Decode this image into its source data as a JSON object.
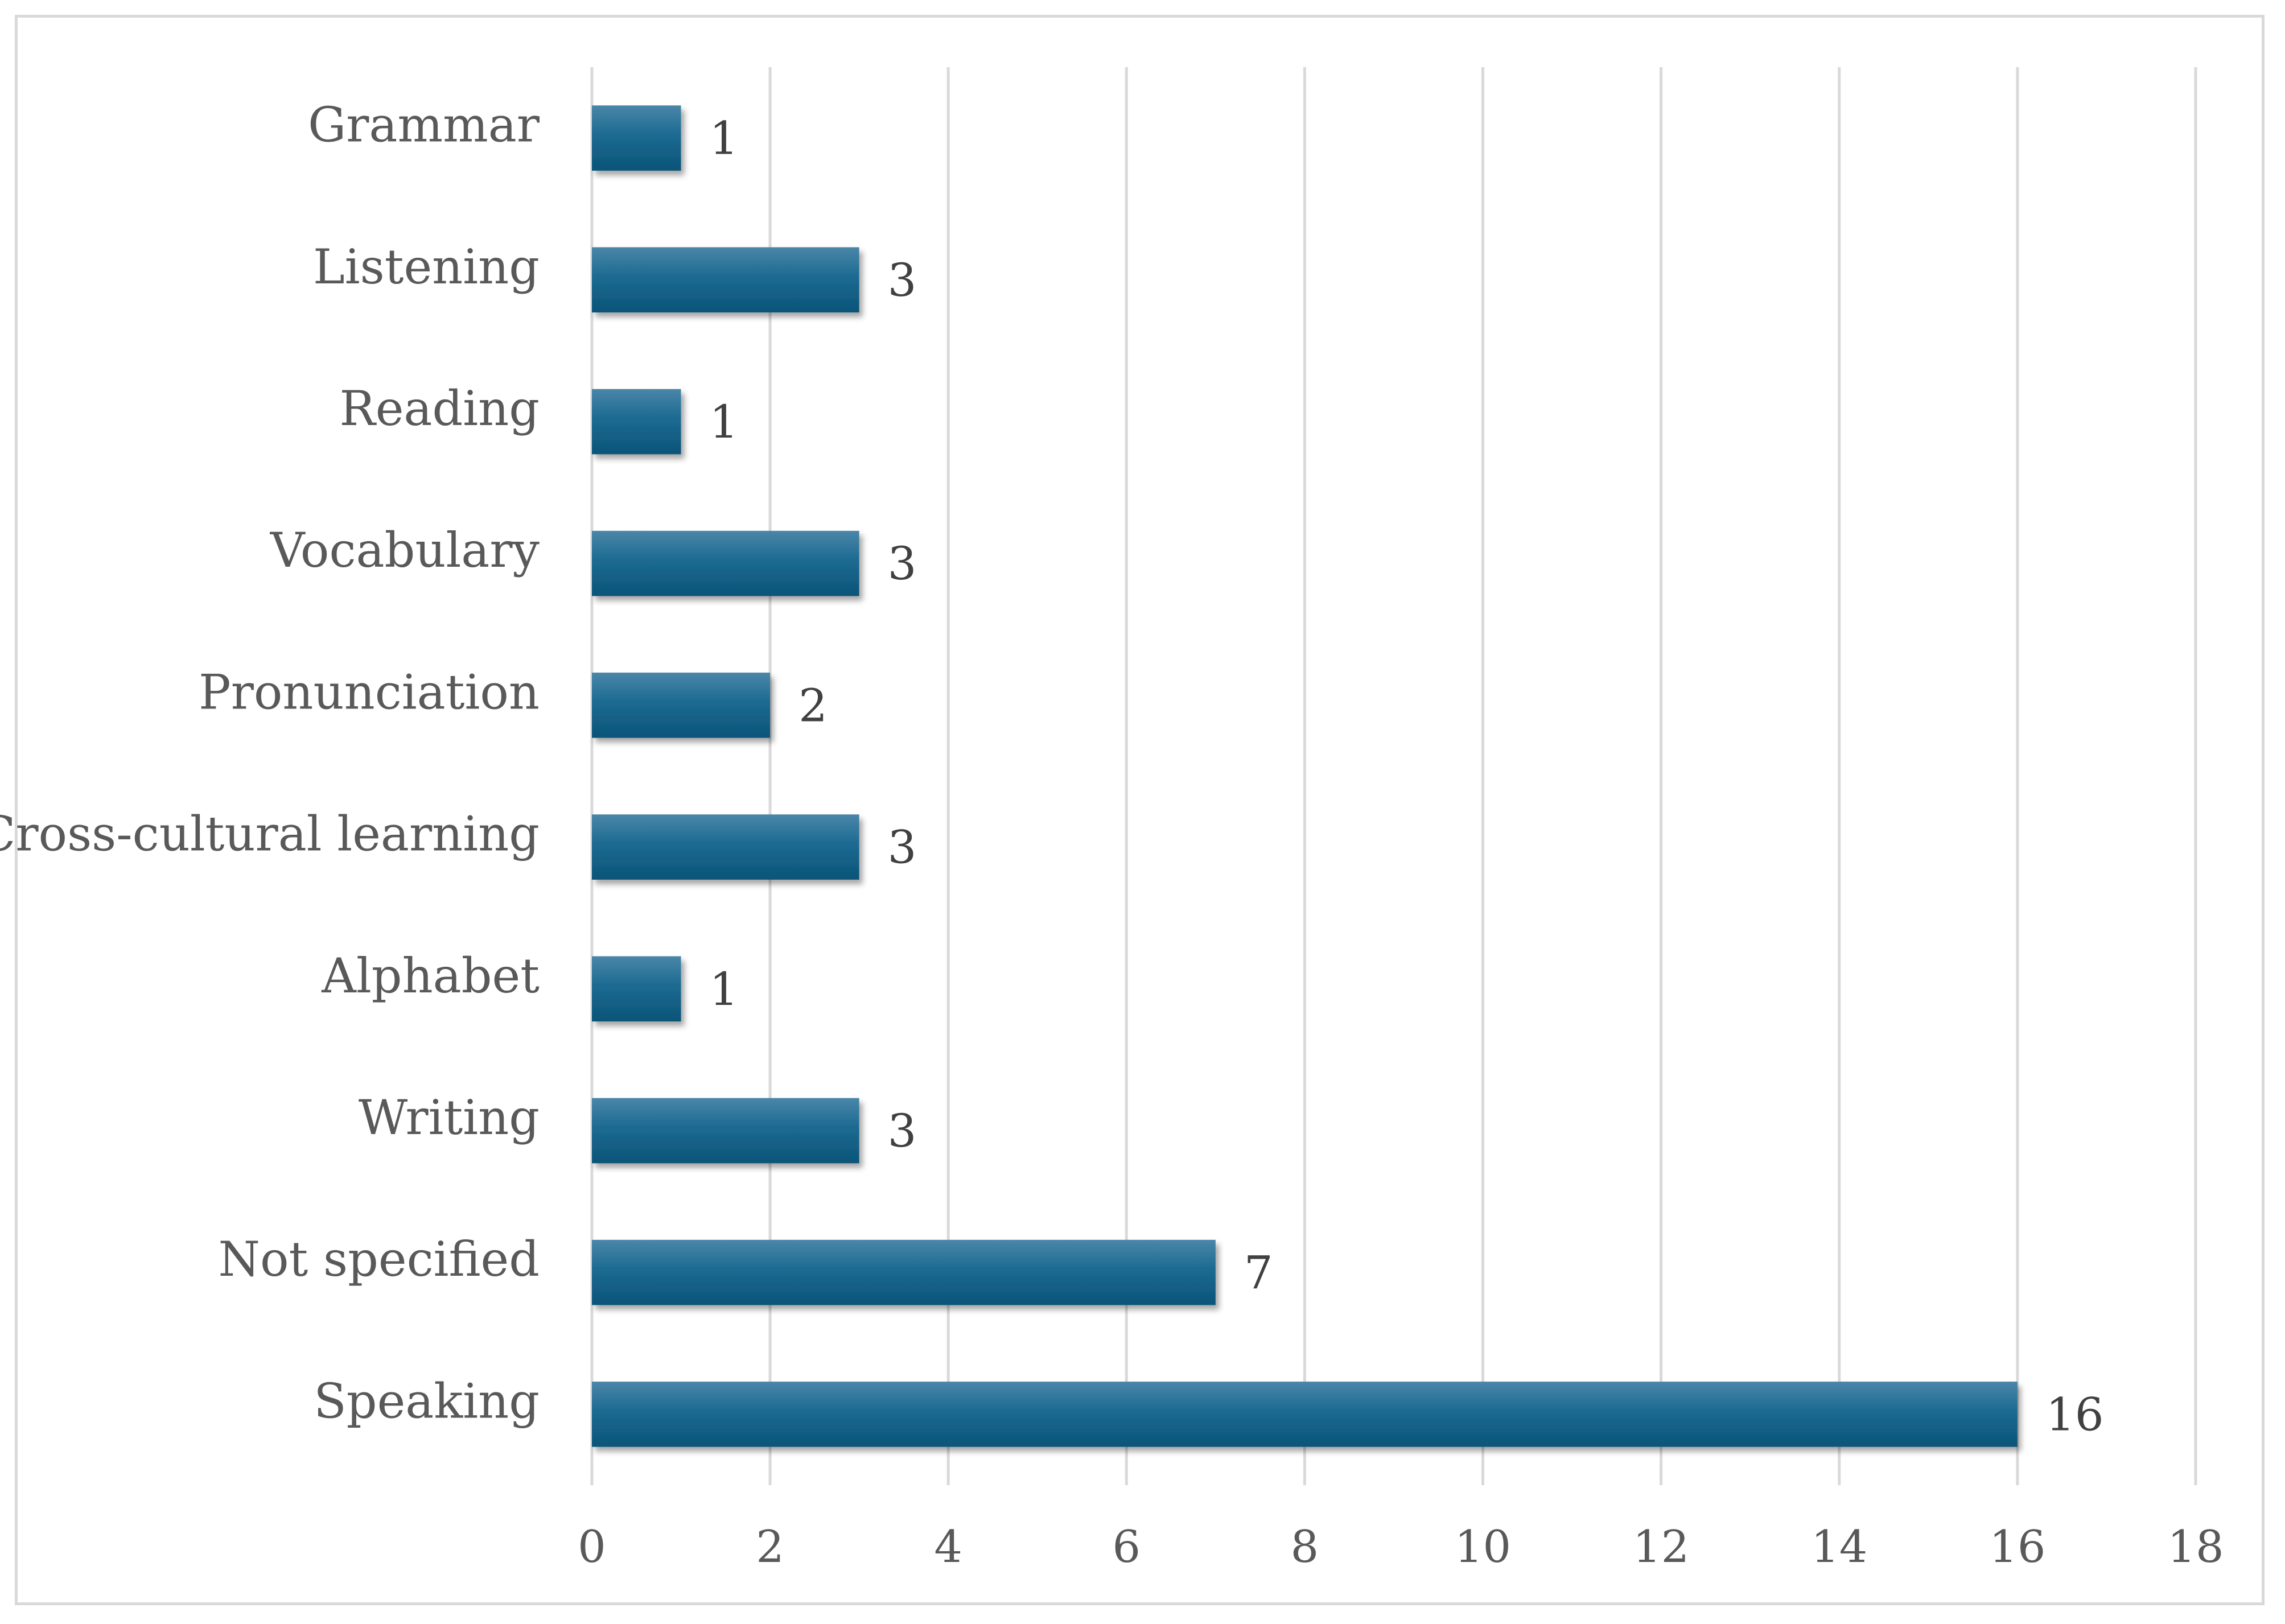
{
  "chart_data": {
    "type": "bar",
    "orientation": "horizontal",
    "categories": [
      "Grammar",
      "Listening",
      "Reading",
      "Vocabulary",
      "Pronunciation",
      "Cross-cultural learning",
      "Alphabet",
      "Writing",
      "Not specified",
      "Speaking"
    ],
    "values": [
      1,
      3,
      1,
      3,
      2,
      3,
      1,
      3,
      7,
      16
    ],
    "title": "",
    "xlabel": "",
    "ylabel": "",
    "xlim": [
      0,
      18
    ],
    "xticks": [
      0,
      2,
      4,
      6,
      8,
      10,
      12,
      14,
      16,
      18
    ],
    "grid": "vertical",
    "legend": "none",
    "bar_color": "#0e5a80",
    "bar_color_light": "#4a86a8",
    "gridline_color": "#d9d9d9",
    "text_color": "#595959"
  }
}
